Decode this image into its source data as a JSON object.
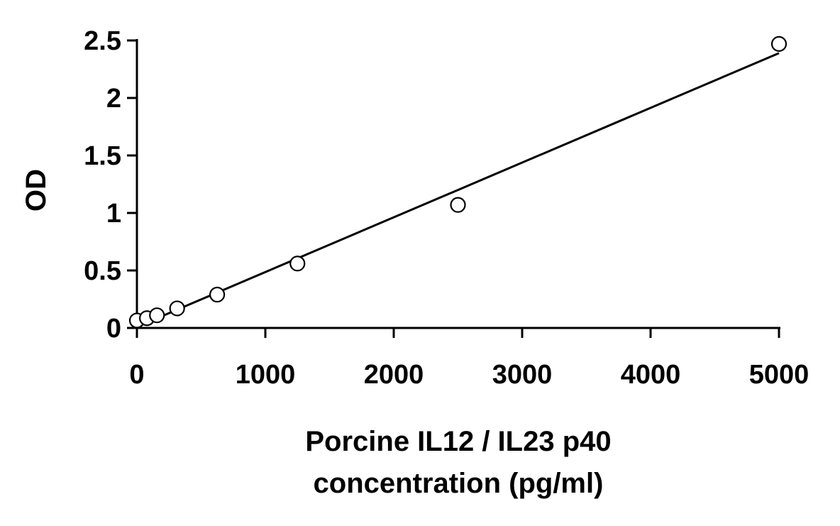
{
  "chart_data": {
    "type": "scatter",
    "title": "",
    "ylabel": "OD",
    "xlabel_lines": [
      "Porcine IL12 / IL23 p40",
      "concentration (pg/ml)"
    ],
    "xlim": [
      0,
      5000
    ],
    "ylim": [
      0,
      2.5
    ],
    "x_ticks": [
      0,
      1000,
      2000,
      3000,
      4000,
      5000
    ],
    "x_tick_labels": [
      "0",
      "1000",
      "2000",
      "3000",
      "4000",
      "5000"
    ],
    "y_ticks": [
      0,
      0.5,
      1,
      1.5,
      2,
      2.5
    ],
    "y_tick_labels": [
      "0",
      "0.5",
      "1",
      "1.5",
      "2",
      "2.5"
    ],
    "grid": false,
    "legend": "none",
    "series": [
      {
        "marker": "open-circle",
        "x": [
          0,
          78,
          156,
          313,
          625,
          1250,
          2500,
          5000
        ],
        "y": [
          0.065,
          0.085,
          0.11,
          0.17,
          0.29,
          0.56,
          1.07,
          2.47
        ]
      }
    ],
    "trendline": {
      "type": "linear",
      "x": [
        0,
        5000
      ],
      "y": [
        0.01,
        2.39
      ]
    }
  }
}
